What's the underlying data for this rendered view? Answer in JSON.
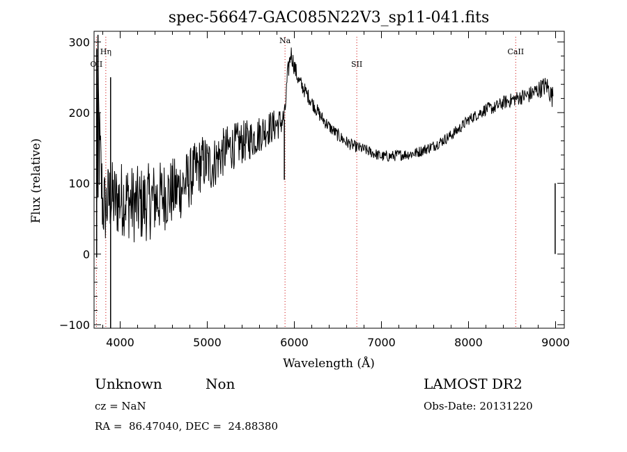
{
  "chart_data": {
    "type": "line",
    "title": "spec-56647-GAC085N22V3_sp11-041.fits",
    "xlabel": "Wavelength (Å)",
    "ylabel": "Flux (relative)",
    "xlim": [
      3700,
      9100
    ],
    "ylim": [
      -105,
      315
    ],
    "x_ticks": [
      4000,
      5000,
      6000,
      7000,
      8000,
      9000
    ],
    "x_tick_labels": [
      "4000",
      "5000",
      "6000",
      "7000",
      "8000",
      "9000"
    ],
    "y_ticks": [
      -100,
      0,
      100,
      200,
      300
    ],
    "y_tick_labels": [
      "−100",
      "0",
      "100",
      "200",
      "300"
    ],
    "grid": false,
    "series": [
      {
        "line_color": "#000000",
        "x": [
          3730,
          3745,
          3760,
          3780,
          3800,
          3830,
          3880,
          3950,
          4050,
          4150,
          4250,
          4350,
          4450,
          4550,
          4650,
          4750,
          4850,
          4950,
          5050,
          5150,
          5250,
          5350,
          5450,
          5550,
          5650,
          5750,
          5830,
          5870,
          5890,
          5920,
          5960,
          6000,
          6050,
          6100,
          6200,
          6300,
          6400,
          6500,
          6600,
          6700,
          6800,
          6900,
          7000,
          7100,
          7200,
          7300,
          7400,
          7500,
          7600,
          7700,
          7800,
          7900,
          8000,
          8100,
          8200,
          8300,
          8400,
          8500,
          8600,
          8700,
          8800,
          8850,
          8900,
          8930,
          8960,
          8970
        ],
        "y": [
          50,
          240,
          150,
          110,
          70,
          65,
          80,
          75,
          80,
          70,
          70,
          75,
          80,
          85,
          90,
          100,
          115,
          130,
          125,
          140,
          150,
          155,
          160,
          165,
          175,
          180,
          185,
          190,
          195,
          250,
          285,
          265,
          245,
          235,
          215,
          195,
          180,
          168,
          158,
          152,
          148,
          143,
          138,
          138,
          140,
          141,
          143,
          148,
          153,
          160,
          168,
          178,
          190,
          197,
          205,
          207,
          214,
          218,
          222,
          225,
          232,
          236,
          238,
          230,
          222,
          225
        ],
        "noise_amplitude": [
          30,
          60,
          80,
          70,
          60,
          55,
          55,
          55,
          55,
          55,
          55,
          55,
          52,
          50,
          48,
          45,
          42,
          40,
          38,
          36,
          34,
          32,
          30,
          28,
          26,
          24,
          22,
          20,
          18,
          15,
          14,
          13,
          12,
          11,
          10,
          10,
          9,
          9,
          9,
          8,
          8,
          8,
          8,
          8,
          8,
          8,
          8,
          8,
          8,
          8,
          8,
          8,
          8,
          8,
          9,
          9,
          10,
          10,
          11,
          12,
          13,
          14,
          15,
          15,
          15,
          15
        ]
      }
    ],
    "artifacts": [
      {
        "x": 3730,
        "y_from": -5,
        "y_to": 290
      },
      {
        "x": 3745,
        "y_from": 80,
        "y_to": 310
      },
      {
        "x": 3890,
        "y_from": -105,
        "y_to": 250
      },
      {
        "x": 5885,
        "y_from": 105,
        "y_to": 190
      },
      {
        "x": 8995,
        "y_from": 0,
        "y_to": 100
      }
    ],
    "line_markers": [
      {
        "label": "OII",
        "x": 3727
      },
      {
        "label": "Hη",
        "x": 3835
      },
      {
        "label": "Na",
        "x": 5893
      },
      {
        "label": "SII",
        "x": 6717
      },
      {
        "label": "CaII",
        "x": 8542
      }
    ],
    "marker_color": "#cc0000"
  },
  "info": {
    "class_label": "Unknown",
    "subclass_label": "Non",
    "survey": "LAMOST DR2",
    "cz": "cz = NaN",
    "obs_date": "Obs-Date: 20131220",
    "coords": "RA =  86.47040, DEC =  24.88380"
  }
}
